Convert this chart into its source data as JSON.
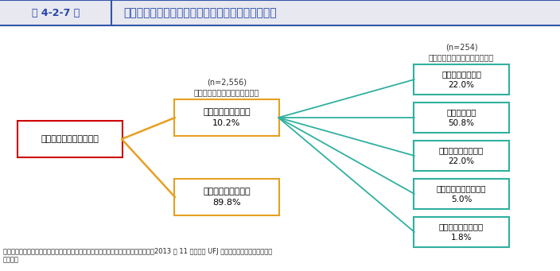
{
  "title": "第 4-2-7 図",
  "title_main": "国の中小企業・小規模事業者施策の活用状況、評価",
  "source_text": "資料：中小企業庁委託「中小企業支援機関の連携状況と施策認知度に関する調査」（2013 年 11 月、三菱 UFJ リサーチ＆コンサルティング\n（株））",
  "box_left": {
    "label": "中小企業・小規模事業者",
    "color_border": "#cc0000",
    "color_fill": "#ffffff"
  },
  "box_mid_top": {
    "label": "活用したことがある\n10.2%",
    "label_above1": "(n=2,556)",
    "label_above2": "中小企業・小規模事業者施策を",
    "color_border": "#e6a020",
    "color_fill": "#ffffff"
  },
  "box_mid_bottom": {
    "label": "活用したことがない\n89.8%",
    "color_border": "#e6a020",
    "color_fill": "#ffffff"
  },
  "boxes_right": [
    {
      "label": "高く評価している\n22.0%"
    },
    {
      "label": "評価している\n50.8%"
    },
    {
      "label": "どちらとも言えない\n22.0%"
    },
    {
      "label": "あまり評価していない\n5.0%"
    },
    {
      "label": "全く評価していない\n1.8%"
    }
  ],
  "label_above_right1": "(n=254)",
  "label_above_right2": "中小企業・小規模事業者施策を",
  "color_right_border": "#30b0a0",
  "color_right_fill": "#ffffff",
  "color_orange_line": "#e6a020",
  "color_teal_line": "#30b0a0",
  "background_color": "#ffffff",
  "header_bg": "#e8e8f0",
  "header_border_color": "#3355aa",
  "title_color": "#2244aa",
  "title_main_color": "#2244aa"
}
